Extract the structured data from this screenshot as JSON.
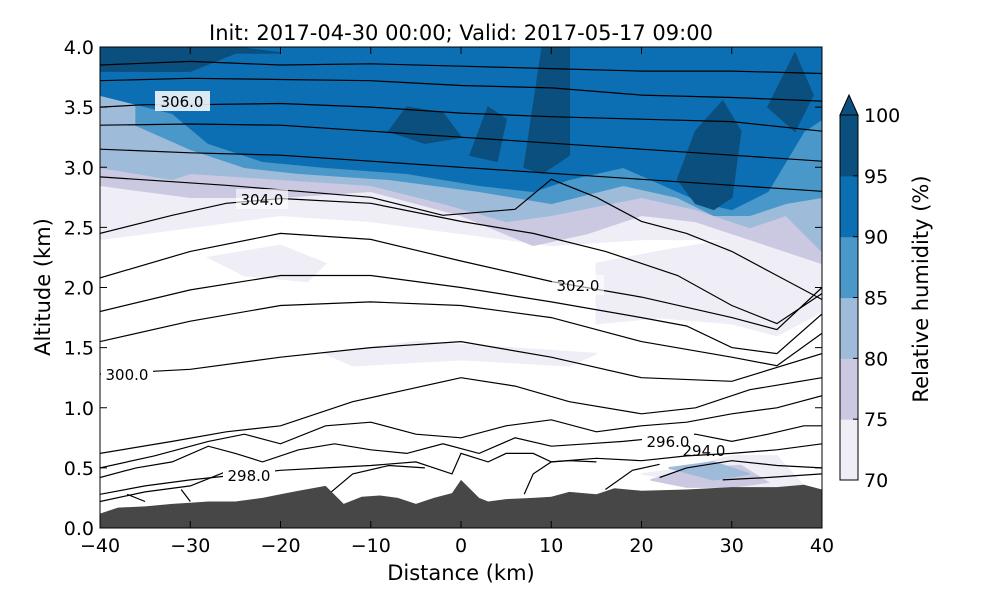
{
  "chart_data": {
    "type": "contour",
    "title": "Init: 2017-04-30 00:00; Valid: 2017-05-17 09:00",
    "xlabel": "Distance (km)",
    "ylabel": "Altitude (km)",
    "xlim": [
      -40,
      40
    ],
    "ylim": [
      0.0,
      4.0
    ],
    "x_ticks": [
      "−40",
      "−30",
      "−20",
      "−10",
      "0",
      "10",
      "20",
      "30",
      "40"
    ],
    "y_ticks": [
      "0.0",
      "0.5",
      "1.0",
      "1.5",
      "2.0",
      "2.5",
      "3.0",
      "3.5",
      "4.0"
    ],
    "filled_field": {
      "name": "Relative humidity (%)",
      "levels": [
        70,
        75,
        80,
        85,
        90,
        95,
        100
      ],
      "colorbar_ticks": [
        "70",
        "75",
        "80",
        "85",
        "90",
        "95",
        "100"
      ],
      "extend": "max",
      "colors": [
        "#efedf5",
        "#cbc9e2",
        "#9ebcda",
        "#4a98c9",
        "#0d6fb3",
        "#0b4f7e"
      ]
    },
    "contour_labels": [
      "306.0",
      "304.0",
      "302.0",
      "300.0",
      "298.0",
      "296.0",
      "294.0"
    ],
    "terrain_color": "#474747",
    "terrain": {
      "x": [
        -40,
        -38,
        -35,
        -32,
        -30,
        -28,
        -25,
        -22,
        -20,
        -18,
        -15,
        -13,
        -11,
        -9,
        -7,
        -5,
        -3,
        -1,
        0,
        2,
        3,
        5,
        8,
        10,
        12,
        15,
        17,
        20,
        25,
        30,
        35,
        38,
        40
      ],
      "z": [
        0.12,
        0.17,
        0.18,
        0.2,
        0.21,
        0.22,
        0.22,
        0.25,
        0.28,
        0.31,
        0.35,
        0.2,
        0.26,
        0.27,
        0.25,
        0.2,
        0.25,
        0.29,
        0.4,
        0.25,
        0.22,
        0.24,
        0.25,
        0.26,
        0.3,
        0.28,
        0.33,
        0.31,
        0.32,
        0.34,
        0.34,
        0.36,
        0.32
      ]
    },
    "rh_regions": [
      {
        "level": 0,
        "x": [
          -40,
          -30,
          -20,
          -10,
          0,
          10,
          20,
          30,
          40,
          40,
          30,
          20,
          10,
          0,
          -10,
          -20,
          -30,
          -40
        ],
        "y": [
          2.4,
          2.5,
          2.6,
          2.55,
          2.45,
          2.35,
          2.4,
          2.4,
          2.2,
          4.0,
          4.0,
          4.0,
          4.0,
          4.0,
          4.0,
          4.0,
          4.0,
          4.0
        ]
      },
      {
        "level": 0,
        "x": [
          -28,
          -20,
          -15,
          -17,
          -24,
          -28
        ],
        "y": [
          2.25,
          2.35,
          2.2,
          2.05,
          2.1,
          2.25
        ]
      },
      {
        "level": 0,
        "x": [
          15,
          22,
          30,
          35,
          40,
          40,
          35,
          30,
          22,
          15
        ],
        "y": [
          1.7,
          1.75,
          1.7,
          1.6,
          1.8,
          2.6,
          2.5,
          2.4,
          2.3,
          2.2
        ]
      },
      {
        "level": 0,
        "x": [
          -15,
          -5,
          5,
          15,
          12,
          0,
          -12,
          -15
        ],
        "y": [
          1.45,
          1.55,
          1.5,
          1.45,
          1.35,
          1.4,
          1.35,
          1.45
        ]
      },
      {
        "level": 0,
        "x": [
          20,
          25,
          30,
          35,
          38,
          30,
          20
        ],
        "y": [
          0.45,
          0.5,
          0.6,
          0.6,
          0.35,
          0.32,
          0.45
        ]
      },
      {
        "level": 1,
        "x": [
          -40,
          -30,
          -20,
          -10,
          0,
          8,
          14,
          20,
          26,
          30,
          34,
          40,
          40,
          -40
        ],
        "y": [
          2.85,
          2.75,
          2.75,
          2.8,
          2.6,
          2.35,
          2.45,
          2.6,
          2.55,
          2.45,
          2.35,
          2.2,
          4.0,
          4.0
        ]
      },
      {
        "level": 1,
        "x": [
          21,
          26,
          31,
          34,
          30,
          25,
          21
        ],
        "y": [
          0.4,
          0.5,
          0.52,
          0.38,
          0.34,
          0.34,
          0.4
        ]
      },
      {
        "level": 2,
        "x": [
          -40,
          -36,
          -32,
          -30,
          -20,
          -10,
          -2,
          5,
          10,
          20,
          26,
          32,
          36,
          40,
          40,
          -40
        ],
        "y": [
          3.0,
          2.95,
          2.9,
          2.95,
          2.9,
          2.85,
          2.7,
          2.55,
          2.6,
          2.75,
          2.65,
          2.5,
          2.6,
          2.3,
          4.0,
          4.0
        ]
      },
      {
        "level": 2,
        "x": [
          23,
          28,
          32,
          28,
          23
        ],
        "y": [
          0.5,
          0.55,
          0.45,
          0.4,
          0.5
        ]
      },
      {
        "level": 3,
        "x": [
          -36,
          -30,
          -24,
          -18,
          -8,
          2,
          10,
          18,
          24,
          28,
          32,
          36,
          40,
          40,
          -36
        ],
        "y": [
          3.35,
          3.15,
          3.0,
          2.95,
          2.9,
          2.8,
          2.7,
          2.85,
          2.75,
          2.6,
          2.6,
          2.7,
          2.75,
          4.0,
          4.0
        ]
      },
      {
        "level": 4,
        "x": [
          -40,
          -32,
          -28,
          -22,
          -15,
          -6,
          2,
          8,
          12,
          18,
          24,
          27,
          30,
          34,
          38,
          40,
          40,
          -40
        ],
        "y": [
          3.6,
          3.45,
          3.2,
          3.05,
          3.0,
          2.95,
          2.85,
          2.8,
          2.9,
          3.0,
          2.8,
          2.7,
          2.65,
          2.8,
          3.3,
          3.4,
          4.0,
          4.0
        ]
      },
      {
        "level": 5,
        "x": [
          -40,
          -30,
          -25,
          -20,
          -25,
          -40
        ],
        "y": [
          3.8,
          3.8,
          3.95,
          3.95,
          4.0,
          4.0
        ]
      },
      {
        "level": 5,
        "x": [
          -8,
          -4,
          0,
          -2,
          -6,
          -8
        ],
        "y": [
          3.3,
          3.2,
          3.25,
          3.45,
          3.5,
          3.3
        ]
      },
      {
        "level": 5,
        "x": [
          1,
          4,
          5,
          3,
          1
        ],
        "y": [
          3.1,
          3.05,
          3.4,
          3.5,
          3.1
        ]
      },
      {
        "level": 5,
        "x": [
          7,
          9,
          12,
          12,
          9,
          7
        ],
        "y": [
          3.0,
          2.95,
          3.1,
          4.0,
          4.0,
          3.0
        ]
      },
      {
        "level": 5,
        "x": [
          24,
          26,
          28,
          30,
          31,
          29,
          26,
          24
        ],
        "y": [
          2.9,
          2.7,
          2.65,
          2.75,
          3.3,
          3.55,
          3.3,
          2.9
        ]
      },
      {
        "level": 5,
        "x": [
          34,
          37,
          39,
          37,
          34
        ],
        "y": [
          3.5,
          3.3,
          3.6,
          3.95,
          3.5
        ]
      }
    ],
    "isentropes": [
      {
        "x": [
          -40,
          -30,
          -20,
          -10,
          0,
          10,
          20,
          30,
          40
        ],
        "y": [
          3.85,
          3.88,
          3.85,
          3.86,
          3.84,
          3.82,
          3.8,
          3.8,
          3.78
        ]
      },
      {
        "x": [
          -40,
          -30,
          -20,
          -10,
          0,
          10,
          20,
          30,
          40
        ],
        "y": [
          3.72,
          3.74,
          3.73,
          3.72,
          3.68,
          3.66,
          3.6,
          3.58,
          3.55
        ]
      },
      {
        "x": [
          -40,
          -35,
          -30,
          -20,
          -10,
          0,
          10,
          20,
          30,
          40
        ],
        "y": [
          3.5,
          3.52,
          3.52,
          3.53,
          3.5,
          3.45,
          3.42,
          3.4,
          3.38,
          3.3
        ]
      },
      {
        "x": [
          -40,
          -30,
          -20,
          -10,
          0,
          10,
          20,
          30,
          40
        ],
        "y": [
          3.35,
          3.36,
          3.35,
          3.3,
          3.25,
          3.2,
          3.15,
          3.1,
          3.05
        ]
      },
      {
        "x": [
          -40,
          -30,
          -20,
          -10,
          0,
          10,
          20,
          30,
          40
        ],
        "y": [
          3.15,
          3.12,
          3.1,
          3.05,
          3.0,
          2.95,
          2.9,
          2.85,
          2.8
        ]
      },
      {
        "x": [
          -40,
          -32,
          -26,
          -18,
          -10,
          -2,
          6,
          10,
          15,
          20,
          25,
          30,
          35,
          40
        ],
        "y": [
          2.92,
          2.88,
          2.85,
          2.8,
          2.75,
          2.6,
          2.65,
          2.9,
          2.75,
          2.55,
          2.45,
          2.3,
          2.1,
          1.9
        ]
      },
      {
        "x": [
          -40,
          -32,
          -26,
          -20,
          -10,
          0,
          8,
          16,
          24,
          30,
          35,
          40
        ],
        "y": [
          2.45,
          2.6,
          2.7,
          2.74,
          2.7,
          2.55,
          2.45,
          2.3,
          2.1,
          1.85,
          1.7,
          1.95
        ]
      },
      {
        "x": [
          -40,
          -30,
          -20,
          -10,
          0,
          10,
          20,
          30,
          35,
          40
        ],
        "y": [
          2.08,
          2.3,
          2.45,
          2.4,
          2.22,
          2.05,
          1.92,
          1.75,
          1.65,
          2.0
        ]
      },
      {
        "x": [
          -40,
          -30,
          -20,
          -10,
          0,
          10,
          20,
          25,
          30,
          35,
          40
        ],
        "y": [
          1.8,
          1.98,
          2.1,
          2.1,
          2.0,
          1.88,
          1.75,
          1.68,
          1.5,
          1.45,
          1.78
        ]
      },
      {
        "x": [
          -40,
          -30,
          -20,
          -10,
          0,
          10,
          20,
          30,
          35,
          40
        ],
        "y": [
          1.55,
          1.72,
          1.85,
          1.88,
          1.85,
          1.75,
          1.55,
          1.42,
          1.35,
          1.62
        ]
      },
      {
        "x": [
          -40,
          -30,
          -20,
          -10,
          0,
          10,
          20,
          30,
          40
        ],
        "y": [
          1.28,
          1.32,
          1.42,
          1.5,
          1.55,
          1.42,
          1.25,
          1.22,
          1.45
        ]
      },
      {
        "x": [
          -40,
          -32,
          -26,
          -20,
          -12,
          -6,
          0,
          6,
          12,
          20,
          26,
          32,
          40
        ],
        "y": [
          0.62,
          0.72,
          0.8,
          0.85,
          1.05,
          1.15,
          1.25,
          1.18,
          1.05,
          0.95,
          1.0,
          1.15,
          1.25
        ]
      },
      {
        "x": [
          -40,
          -34,
          -28,
          -24,
          -20,
          -15,
          -10,
          -5,
          0,
          5,
          10,
          15,
          20,
          25,
          30,
          35,
          40
        ],
        "y": [
          0.5,
          0.6,
          0.72,
          0.78,
          0.7,
          0.85,
          0.88,
          0.78,
          0.75,
          0.85,
          0.9,
          0.8,
          0.85,
          0.88,
          0.95,
          1.0,
          1.1
        ]
      },
      {
        "x": [
          -40,
          -36,
          -32,
          -28,
          -25,
          -22,
          -18,
          -14,
          -10,
          -6,
          -2,
          2,
          6,
          10,
          14,
          18,
          22,
          26,
          30,
          34,
          38,
          40
        ],
        "y": [
          0.42,
          0.5,
          0.55,
          0.68,
          0.62,
          0.55,
          0.65,
          0.7,
          0.65,
          0.62,
          0.7,
          0.62,
          0.75,
          0.68,
          0.7,
          0.72,
          0.75,
          0.78,
          0.72,
          0.78,
          0.85,
          0.85
        ]
      },
      {
        "x": [
          -40,
          -35,
          -30,
          -25,
          -20,
          -15,
          -10,
          -5,
          -1,
          0,
          3,
          5,
          8,
          10,
          15,
          20,
          25,
          30,
          35,
          40
        ],
        "y": [
          0.28,
          0.35,
          0.4,
          0.44,
          0.48,
          0.5,
          0.52,
          0.55,
          0.45,
          0.62,
          0.55,
          0.62,
          0.62,
          0.55,
          0.58,
          0.56,
          0.6,
          0.62,
          0.65,
          0.7
        ]
      },
      {
        "x": [
          -40,
          -35,
          -30,
          -25
        ],
        "y": [
          0.22,
          0.3,
          0.35,
          0.5
        ]
      },
      {
        "x": [
          -37,
          -35
        ],
        "y": [
          0.28,
          0.22
        ]
      },
      {
        "x": [
          -31,
          -30
        ],
        "y": [
          0.32,
          0.22
        ]
      },
      {
        "x": [
          -15,
          -12,
          -8,
          -4
        ],
        "y": [
          0.26,
          0.45,
          0.52,
          0.5
        ]
      },
      {
        "x": [
          7,
          8,
          10,
          12,
          15
        ],
        "y": [
          0.28,
          0.45,
          0.55,
          0.56,
          0.55
        ]
      },
      {
        "x": [
          16,
          19,
          22
        ],
        "y": [
          0.32,
          0.48,
          0.53
        ]
      },
      {
        "x": [
          22,
          25,
          30,
          35,
          40
        ],
        "y": [
          0.42,
          0.5,
          0.56,
          0.52,
          0.5
        ]
      },
      {
        "x": [
          29,
          34,
          40
        ],
        "y": [
          0.4,
          0.42,
          0.45
        ]
      }
    ]
  }
}
